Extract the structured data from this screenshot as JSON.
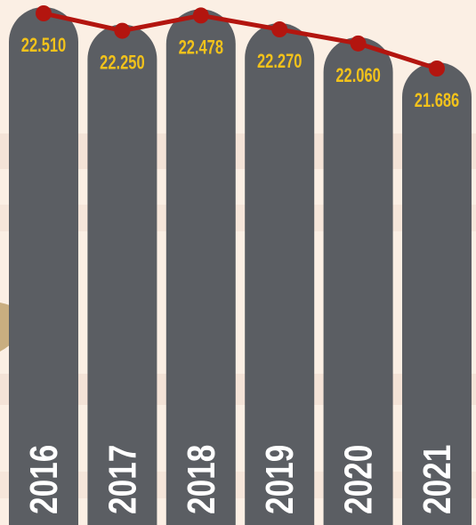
{
  "chart_data": {
    "type": "bar-line",
    "categories": [
      "2016",
      "2017",
      "2018",
      "2019",
      "2020",
      "2021"
    ],
    "values": [
      22.51,
      22.25,
      22.478,
      22.27,
      22.06,
      21.686
    ],
    "value_labels": [
      "22.510",
      "22.250",
      "22.478",
      "22.270",
      "22.060",
      "21.686"
    ],
    "bar_color": "#5b5e63",
    "line_color": "#b3150f",
    "label_color": "#f2c21b"
  }
}
